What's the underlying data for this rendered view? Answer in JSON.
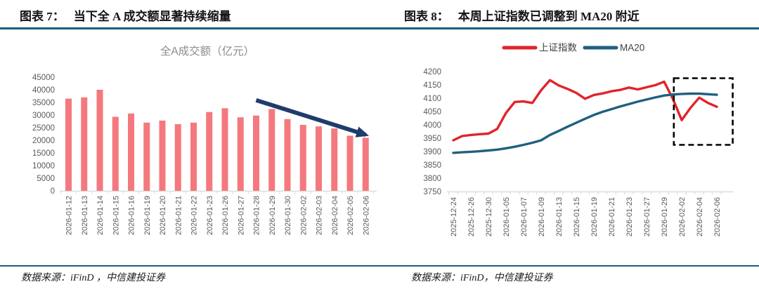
{
  "page": {
    "background": "#ffffff",
    "rule_color": "#156082"
  },
  "figures": [
    {
      "label": "图表 7：",
      "title": "当下全 A 成交额显著持续缩量",
      "source": "数据来源：iFinD ，中信建投证券"
    },
    {
      "label": "图表 8：",
      "title": "本周上证指数已调整到 MA20 附近",
      "source": "数据来源：iFinD，中信建投证券"
    }
  ],
  "chart_data": [
    {
      "type": "bar",
      "title": "全A成交额（亿元）",
      "title_color": "#8c8c8c",
      "categories": [
        "2026-01-12",
        "2026-01-13",
        "2026-01-14",
        "2026-01-15",
        "2026-01-16",
        "2026-01-19",
        "2026-01-20",
        "2026-01-21",
        "2026-01-22",
        "2026-01-23",
        "2026-01-26",
        "2026-01-27",
        "2026-01-28",
        "2026-01-29",
        "2026-01-30",
        "2026-02-02",
        "2026-02-03",
        "2026-02-04",
        "2026-02-05",
        "2026-02-06"
      ],
      "values": [
        36500,
        37000,
        40000,
        29300,
        30600,
        27000,
        27800,
        26400,
        27000,
        31200,
        32700,
        29100,
        29800,
        32400,
        28400,
        26100,
        25500,
        24700,
        21800,
        21000
      ],
      "ylim": [
        0,
        45000
      ],
      "ytick_step": 5000,
      "bar_color": "#F4797E",
      "axis_color": "#D9D9D9",
      "tick_label_color": "#595959",
      "grid": false,
      "annotation": {
        "type": "arrow",
        "meaning": "volume shrinking trend",
        "color": "#1F3C6B",
        "from": {
          "index": 12,
          "value": 35900
        },
        "to": {
          "index": 19,
          "value": 22200
        }
      }
    },
    {
      "type": "line",
      "x": [
        "2025-12-24",
        "2025-12-25",
        "2025-12-26",
        "2025-12-29",
        "2025-12-30",
        "2025-12-31",
        "2026-01-05",
        "2026-01-06",
        "2026-01-07",
        "2026-01-08",
        "2026-01-09",
        "2026-01-12",
        "2026-01-13",
        "2026-01-14",
        "2026-01-15",
        "2026-01-16",
        "2026-01-19",
        "2026-01-20",
        "2026-01-21",
        "2026-01-22",
        "2026-01-23",
        "2026-01-26",
        "2026-01-27",
        "2026-01-28",
        "2026-01-29",
        "2026-01-30",
        "2026-02-02",
        "2026-02-03",
        "2026-02-04",
        "2026-02-05",
        "2026-02-06"
      ],
      "xtick_every": 2,
      "series": [
        {
          "name": "上证指数",
          "color": "#E1232A",
          "values": [
            3942,
            3958,
            3962,
            3965,
            3967,
            3985,
            4045,
            4086,
            4088,
            4082,
            4130,
            4168,
            4148,
            4135,
            4120,
            4098,
            4112,
            4118,
            4126,
            4131,
            4140,
            4133,
            4141,
            4149,
            4162,
            4097,
            4018,
            4064,
            4102,
            4082,
            4068
          ]
        },
        {
          "name": "MA20",
          "color": "#1F6080",
          "values": [
            3895,
            3897,
            3899,
            3901,
            3904,
            3907,
            3912,
            3918,
            3925,
            3933,
            3942,
            3962,
            3977,
            3993,
            4008,
            4023,
            4037,
            4049,
            4059,
            4069,
            4078,
            4087,
            4095,
            4103,
            4110,
            4114,
            4116,
            4117,
            4117,
            4115,
            4113
          ]
        }
      ],
      "ylim": [
        3750,
        4200
      ],
      "ytick_step": 50,
      "legend_position": "top",
      "legend_text_color": "#3f3f3f",
      "axis_color": "#D9D9D9",
      "tick_label_color": "#595959",
      "grid": false,
      "annotation": {
        "type": "dashed_box",
        "meaning": "recent pullback toward MA20",
        "color": "#000000",
        "x_from_index": 25.1,
        "x_to_index": 31.8,
        "value_top": 4175,
        "value_bottom": 3925
      }
    }
  ]
}
